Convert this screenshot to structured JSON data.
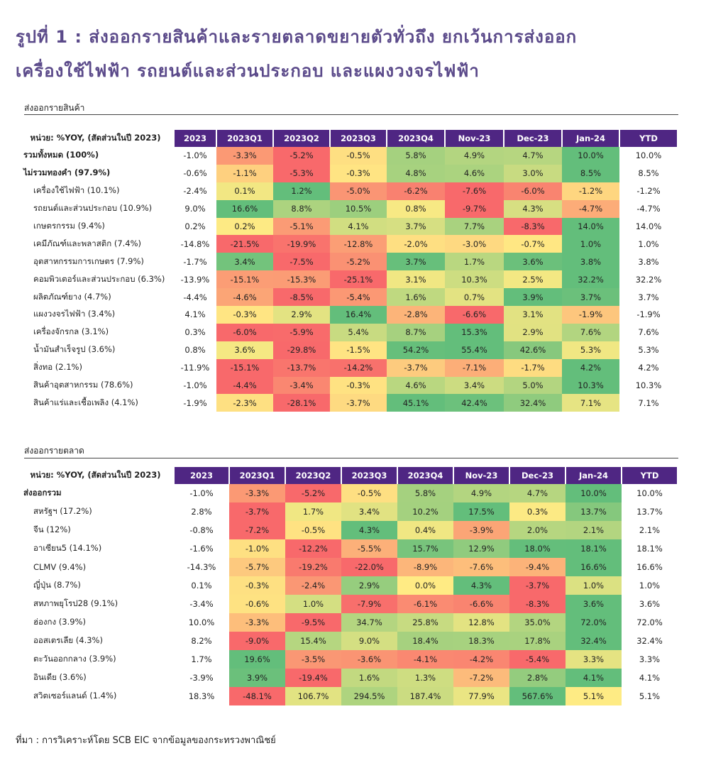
{
  "title": {
    "line1": "รูปที่ 1 : ส่งออกรายสินค้าและรายตลาดขยายตัวทั่วถึง ยกเว้นการส่งออก",
    "line2": "เครื่องใช้ไฟฟ้า รถยนต์และส่วนประกอบ และแผงวงจรไฟฟ้า"
  },
  "colors": {
    "title": "#5b4a8a",
    "header": "#4f2683",
    "scale_min": "#f8696b",
    "scale_mid": "#ffeb84",
    "scale_max": "#63be7b"
  },
  "products": {
    "section_label": "ส่งออกรายสินค้า",
    "unit_label": "หน่วย: %YOY, (สัดส่วนในปี 2023)",
    "columns": [
      "2023",
      "2023Q1",
      "2023Q2",
      "2023Q3",
      "2023Q4",
      "Nov-23",
      "Dec-23",
      "Jan-24",
      "YTD"
    ],
    "rows": [
      {
        "label": "รวมทั้งหมด (100%)",
        "bold": true,
        "values": [
          "-1.0%",
          "-3.3%",
          "-5.2%",
          "-0.5%",
          "5.8%",
          "4.9%",
          "4.7%",
          "10.0%",
          "10.0%"
        ]
      },
      {
        "label": "ไม่รวมทองคำ (97.9%)",
        "bold": true,
        "values": [
          "-0.6%",
          "-1.1%",
          "-5.3%",
          "-0.3%",
          "4.8%",
          "4.6%",
          "3.0%",
          "8.5%",
          "8.5%"
        ]
      },
      {
        "label": "เครื่องใช้ไฟฟ้า (10.1%)",
        "values": [
          "-2.4%",
          "0.1%",
          "1.2%",
          "-5.0%",
          "-6.2%",
          "-7.6%",
          "-6.0%",
          "-1.2%",
          "-1.2%"
        ]
      },
      {
        "label": "รถยนต์และส่วนประกอบ (10.9%)",
        "values": [
          "9.0%",
          "16.6%",
          "8.8%",
          "10.5%",
          "0.8%",
          "-9.7%",
          "4.3%",
          "-4.7%",
          "-4.7%"
        ]
      },
      {
        "label": "เกษตรกรรม (9.4%)",
        "values": [
          "0.2%",
          "0.2%",
          "-5.1%",
          "4.1%",
          "3.7%",
          "7.7%",
          "-8.3%",
          "14.0%",
          "14.0%"
        ]
      },
      {
        "label": "เคมีภัณฑ์และพลาสติก (7.4%)",
        "values": [
          "-14.8%",
          "-21.5%",
          "-19.9%",
          "-12.8%",
          "-2.0%",
          "-3.0%",
          "-0.7%",
          "1.0%",
          "1.0%"
        ]
      },
      {
        "label": "อุตสาหกรรมการเกษตร (7.9%)",
        "values": [
          "-1.7%",
          "3.4%",
          "-7.5%",
          "-5.2%",
          "3.7%",
          "1.7%",
          "3.6%",
          "3.8%",
          "3.8%"
        ]
      },
      {
        "label": "คอมพิวเตอร์และส่วนประกอบ (6.3%)",
        "values": [
          "-13.9%",
          "-15.1%",
          "-15.3%",
          "-25.1%",
          "3.1%",
          "10.3%",
          "2.5%",
          "32.2%",
          "32.2%"
        ]
      },
      {
        "label": "ผลิตภัณฑ์ยาง (4.7%)",
        "values": [
          "-4.4%",
          "-4.6%",
          "-8.5%",
          "-5.4%",
          "1.6%",
          "0.7%",
          "3.9%",
          "3.7%",
          "3.7%"
        ]
      },
      {
        "label": "แผงวงจรไฟฟ้า (3.4%)",
        "values": [
          "4.1%",
          "-0.3%",
          "2.9%",
          "16.4%",
          "-2.8%",
          "-6.6%",
          "3.1%",
          "-1.9%",
          "-1.9%"
        ]
      },
      {
        "label": "เครื่องจักรกล (3.1%)",
        "values": [
          "0.3%",
          "-6.0%",
          "-5.9%",
          "5.4%",
          "8.7%",
          "15.3%",
          "2.9%",
          "7.6%",
          "7.6%"
        ]
      },
      {
        "label": "น้ำมันสำเร็จรูป (3.6%)",
        "values": [
          "0.8%",
          "3.6%",
          "-29.8%",
          "-1.5%",
          "54.2%",
          "55.4%",
          "42.6%",
          "5.3%",
          "5.3%"
        ]
      },
      {
        "label": "สิ่งทอ (2.1%)",
        "values": [
          "-11.9%",
          "-15.1%",
          "-13.7%",
          "-14.2%",
          "-3.7%",
          "-7.1%",
          "-1.7%",
          "4.2%",
          "4.2%"
        ]
      },
      {
        "label": "สินค้าอุตสาหกรรม (78.6%)",
        "values": [
          "-1.0%",
          "-4.4%",
          "-3.4%",
          "-0.3%",
          "4.6%",
          "3.4%",
          "5.0%",
          "10.3%",
          "10.3%"
        ]
      },
      {
        "label": "สินค้าแร่และเชื้อเพลิง (4.1%)",
        "values": [
          "-1.9%",
          "-2.3%",
          "-28.1%",
          "-3.7%",
          "45.1%",
          "42.4%",
          "32.4%",
          "7.1%",
          "7.1%"
        ]
      }
    ]
  },
  "markets": {
    "section_label": "ส่งออกรายตลาด",
    "unit_label": "หน่วย: %YOY, (สัดส่วนในปี 2023)",
    "columns": [
      "2023",
      "2023Q1",
      "2023Q2",
      "2023Q3",
      "2023Q4",
      "Nov-23",
      "Dec-23",
      "Jan-24",
      "YTD"
    ],
    "rows": [
      {
        "label": "ส่งออกรวม",
        "bold": true,
        "values": [
          "-1.0%",
          "-3.3%",
          "-5.2%",
          "-0.5%",
          "5.8%",
          "4.9%",
          "4.7%",
          "10.0%",
          "10.0%"
        ]
      },
      {
        "label": "สหรัฐฯ (17.2%)",
        "values": [
          "2.8%",
          "-3.7%",
          "1.7%",
          "3.4%",
          "10.2%",
          "17.5%",
          "0.3%",
          "13.7%",
          "13.7%"
        ]
      },
      {
        "label": "จีน (12%)",
        "values": [
          "-0.8%",
          "-7.2%",
          "-0.5%",
          "4.3%",
          "0.4%",
          "-3.9%",
          "2.0%",
          "2.1%",
          "2.1%"
        ]
      },
      {
        "label": "อาเซียน5 (14.1%)",
        "values": [
          "-1.6%",
          "-1.0%",
          "-12.2%",
          "-5.5%",
          "15.7%",
          "12.9%",
          "18.0%",
          "18.1%",
          "18.1%"
        ]
      },
      {
        "label": "CLMV (9.4%)",
        "values": [
          "-14.3%",
          "-5.7%",
          "-19.2%",
          "-22.0%",
          "-8.9%",
          "-7.6%",
          "-9.4%",
          "16.6%",
          "16.6%"
        ]
      },
      {
        "label": "ญี่ปุ่น (8.7%)",
        "values": [
          "0.1%",
          "-0.3%",
          "-2.4%",
          "2.9%",
          "0.0%",
          "4.3%",
          "-3.7%",
          "1.0%",
          "1.0%"
        ]
      },
      {
        "label": "สหภาพยุโรป28 (9.1%)",
        "values": [
          "-3.4%",
          "-0.6%",
          "1.0%",
          "-7.9%",
          "-6.1%",
          "-6.6%",
          "-8.3%",
          "3.6%",
          "3.6%"
        ]
      },
      {
        "label": "ฮ่องกง (3.9%)",
        "values": [
          "10.0%",
          "-3.3%",
          "-9.5%",
          "34.7%",
          "25.8%",
          "12.8%",
          "35.0%",
          "72.0%",
          "72.0%"
        ]
      },
      {
        "label": "ออสเตรเลีย (4.3%)",
        "values": [
          "8.2%",
          "-9.0%",
          "15.4%",
          "9.0%",
          "18.4%",
          "18.3%",
          "17.8%",
          "32.4%",
          "32.4%"
        ]
      },
      {
        "label": "ตะวันออกกลาง (3.9%)",
        "values": [
          "1.7%",
          "19.6%",
          "-3.5%",
          "-3.6%",
          "-4.1%",
          "-4.2%",
          "-5.4%",
          "3.3%",
          "3.3%"
        ]
      },
      {
        "label": "อินเดีย (3.6%)",
        "values": [
          "-3.9%",
          "3.9%",
          "-19.4%",
          "1.6%",
          "1.3%",
          "-7.2%",
          "2.8%",
          "4.1%",
          "4.1%"
        ]
      },
      {
        "label": "สวิตเซอร์แลนด์ (1.4%)",
        "values": [
          "18.3%",
          "-48.1%",
          "106.7%",
          "294.5%",
          "187.4%",
          "77.9%",
          "567.6%",
          "5.1%",
          "5.1%"
        ]
      }
    ]
  },
  "footer": "ที่มา : การวิเคราะห์โดย SCB EIC จากข้อมูลของกระทรวงพาณิชย์"
}
